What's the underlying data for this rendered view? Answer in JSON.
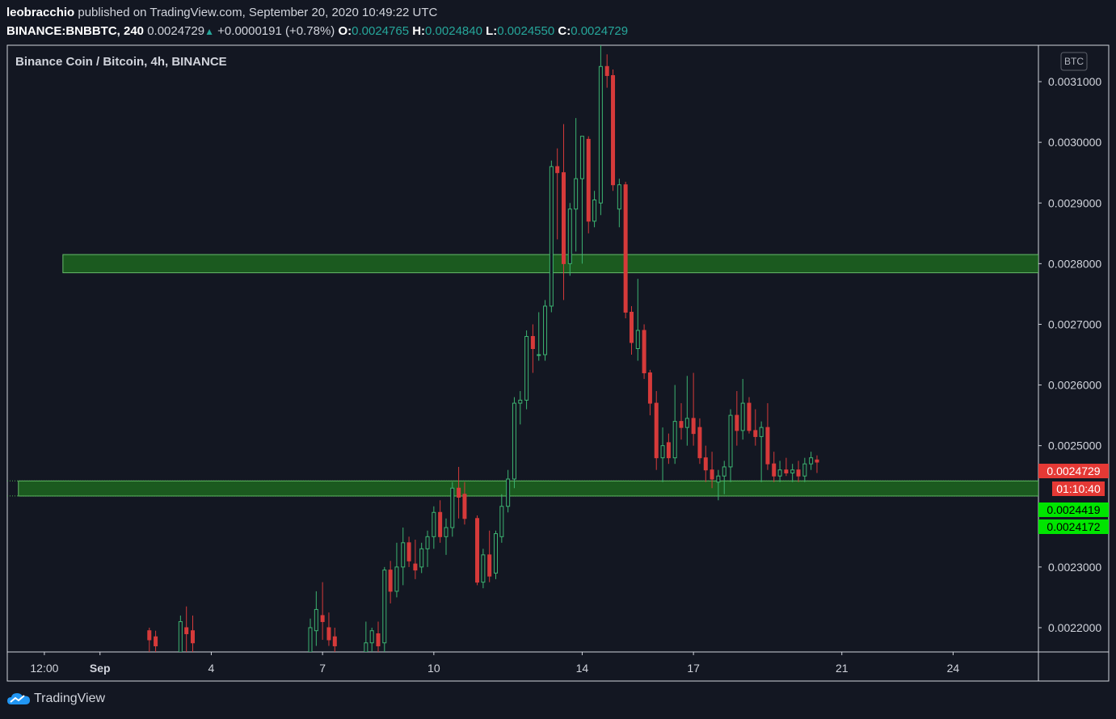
{
  "header": {
    "author": "leobracchio",
    "published_text": "published on TradingView.com, September 20, 2020 10:49:22 UTC",
    "symbol": "BINANCE:BNBBTC, 240",
    "last_price": "0.0024729",
    "change": "+0.0000191 (+0.78%)",
    "open_label": "O:",
    "open": "0.0024765",
    "high_label": "H:",
    "high": "0.0024840",
    "low_label": "L:",
    "low": "0.0024550",
    "close_label": "C:",
    "close": "0.0024729"
  },
  "footer": {
    "brand": "TradingView"
  },
  "colors": {
    "background": "#131722",
    "up": "#26a69a",
    "up_candle": "#3cb371",
    "down_candle": "#d63a3a",
    "zone_fill": "#1b5e20",
    "zone_border": "#66bb6a",
    "price_label_red": "#e53935",
    "price_label_green": "#00e500"
  },
  "chart_data": {
    "type": "candlestick",
    "title": "Binance Coin / Bitcoin, 4h, BINANCE",
    "currency_badge": "BTC",
    "y_ticks": [
      "0.0031000",
      "0.0030000",
      "0.0029000",
      "0.0028000",
      "0.0027000",
      "0.0026000",
      "0.0025000",
      "0.0023000",
      "0.0022000"
    ],
    "ylim": [
      0.00216,
      0.00316
    ],
    "x_ticks": [
      "12:00",
      "Sep",
      "4",
      "7",
      "10",
      "14",
      "17",
      "21",
      "24"
    ],
    "x_tick_days": [
      -0.5,
      1,
      4,
      7,
      10,
      14,
      17,
      21,
      24
    ],
    "xlim": [
      -1.5,
      26.3
    ],
    "price_labels": [
      {
        "text": "0.0024729",
        "value": 0.0024729,
        "style": "red"
      },
      {
        "text": "01:10:40",
        "value": 0.00244,
        "style": "red"
      },
      {
        "text": "0.0024419",
        "value": 0.0024419,
        "style": "green"
      },
      {
        "text": "0.0024172",
        "value": 0.0024172,
        "style": "green"
      }
    ],
    "zones": [
      {
        "name": "resistance zone",
        "from_day": 0.0,
        "to_day": 26.3,
        "low": 0.002785,
        "high": 0.002815
      },
      {
        "name": "support zone",
        "from_day": -1.2,
        "to_day": 26.3,
        "low": 0.002417,
        "high": 0.0024419
      }
    ],
    "candles": [
      {
        "day": 2.33,
        "o": 0.002195,
        "h": 0.0022,
        "l": 0.00215,
        "c": 0.00218
      },
      {
        "day": 2.5,
        "o": 0.002185,
        "h": 0.002195,
        "l": 0.00215,
        "c": 0.00217
      },
      {
        "day": 3.17,
        "o": 0.00216,
        "h": 0.00222,
        "l": 0.00215,
        "c": 0.00221
      },
      {
        "day": 3.33,
        "o": 0.0022,
        "h": 0.002235,
        "l": 0.00215,
        "c": 0.00219
      },
      {
        "day": 3.5,
        "o": 0.002195,
        "h": 0.00222,
        "l": 0.00215,
        "c": 0.002175
      },
      {
        "day": 6.67,
        "o": 0.00216,
        "h": 0.002215,
        "l": 0.00215,
        "c": 0.0022
      },
      {
        "day": 6.83,
        "o": 0.002195,
        "h": 0.00226,
        "l": 0.00217,
        "c": 0.00223
      },
      {
        "day": 7.0,
        "o": 0.00222,
        "h": 0.002275,
        "l": 0.00218,
        "c": 0.00221
      },
      {
        "day": 7.17,
        "o": 0.0022,
        "h": 0.002225,
        "l": 0.00217,
        "c": 0.00218
      },
      {
        "day": 7.33,
        "o": 0.002185,
        "h": 0.0022,
        "l": 0.00215,
        "c": 0.00217
      },
      {
        "day": 8.17,
        "o": 0.00216,
        "h": 0.00221,
        "l": 0.00215,
        "c": 0.002175
      },
      {
        "day": 8.33,
        "o": 0.002175,
        "h": 0.0022,
        "l": 0.00215,
        "c": 0.002195
      },
      {
        "day": 8.5,
        "o": 0.00219,
        "h": 0.00221,
        "l": 0.00215,
        "c": 0.00217
      },
      {
        "day": 8.67,
        "o": 0.002175,
        "h": 0.0023,
        "l": 0.00215,
        "c": 0.002295
      },
      {
        "day": 8.83,
        "o": 0.002295,
        "h": 0.00231,
        "l": 0.00224,
        "c": 0.00226
      },
      {
        "day": 9.0,
        "o": 0.00226,
        "h": 0.00234,
        "l": 0.00225,
        "c": 0.0023
      },
      {
        "day": 9.17,
        "o": 0.0023,
        "h": 0.002365,
        "l": 0.00227,
        "c": 0.00234
      },
      {
        "day": 9.33,
        "o": 0.00234,
        "h": 0.00235,
        "l": 0.0023,
        "c": 0.00231
      },
      {
        "day": 9.5,
        "o": 0.002305,
        "h": 0.002345,
        "l": 0.00228,
        "c": 0.002295
      },
      {
        "day": 9.67,
        "o": 0.0023,
        "h": 0.00234,
        "l": 0.00229,
        "c": 0.00233
      },
      {
        "day": 9.83,
        "o": 0.00233,
        "h": 0.00236,
        "l": 0.0023,
        "c": 0.00235
      },
      {
        "day": 10.0,
        "o": 0.00235,
        "h": 0.0024,
        "l": 0.00233,
        "c": 0.00239
      },
      {
        "day": 10.17,
        "o": 0.00239,
        "h": 0.00241,
        "l": 0.00234,
        "c": 0.00235
      },
      {
        "day": 10.33,
        "o": 0.00235,
        "h": 0.00238,
        "l": 0.00232,
        "c": 0.002365
      },
      {
        "day": 10.5,
        "o": 0.002365,
        "h": 0.00244,
        "l": 0.00235,
        "c": 0.00243
      },
      {
        "day": 10.67,
        "o": 0.00243,
        "h": 0.002465,
        "l": 0.00238,
        "c": 0.002415
      },
      {
        "day": 10.83,
        "o": 0.00242,
        "h": 0.00244,
        "l": 0.00237,
        "c": 0.00238
      },
      {
        "day": 11.17,
        "o": 0.00238,
        "h": 0.002385,
        "l": 0.00227,
        "c": 0.002275
      },
      {
        "day": 11.33,
        "o": 0.002275,
        "h": 0.00233,
        "l": 0.002265,
        "c": 0.00232
      },
      {
        "day": 11.5,
        "o": 0.00232,
        "h": 0.00236,
        "l": 0.002275,
        "c": 0.002285
      },
      {
        "day": 11.67,
        "o": 0.00229,
        "h": 0.00236,
        "l": 0.00228,
        "c": 0.002355
      },
      {
        "day": 11.83,
        "o": 0.00235,
        "h": 0.00242,
        "l": 0.00234,
        "c": 0.0024
      },
      {
        "day": 12.0,
        "o": 0.0024,
        "h": 0.00246,
        "l": 0.00239,
        "c": 0.002445
      },
      {
        "day": 12.17,
        "o": 0.002445,
        "h": 0.00258,
        "l": 0.00243,
        "c": 0.00257
      },
      {
        "day": 12.33,
        "o": 0.00257,
        "h": 0.00259,
        "l": 0.002535,
        "c": 0.002575
      },
      {
        "day": 12.5,
        "o": 0.002575,
        "h": 0.00269,
        "l": 0.00256,
        "c": 0.00268
      },
      {
        "day": 12.67,
        "o": 0.00268,
        "h": 0.0027,
        "l": 0.00262,
        "c": 0.00266
      },
      {
        "day": 12.83,
        "o": 0.00265,
        "h": 0.00272,
        "l": 0.00264,
        "c": 0.00265
      },
      {
        "day": 13.0,
        "o": 0.00265,
        "h": 0.00274,
        "l": 0.00264,
        "c": 0.00273
      },
      {
        "day": 13.17,
        "o": 0.00273,
        "h": 0.00297,
        "l": 0.00272,
        "c": 0.00296
      },
      {
        "day": 13.33,
        "o": 0.00296,
        "h": 0.00299,
        "l": 0.00284,
        "c": 0.00295
      },
      {
        "day": 13.5,
        "o": 0.00295,
        "h": 0.00303,
        "l": 0.00274,
        "c": 0.0028
      },
      {
        "day": 13.67,
        "o": 0.0028,
        "h": 0.0029,
        "l": 0.00278,
        "c": 0.00289
      },
      {
        "day": 13.83,
        "o": 0.00289,
        "h": 0.00304,
        "l": 0.00282,
        "c": 0.00294
      },
      {
        "day": 14.0,
        "o": 0.00294,
        "h": 0.00301,
        "l": 0.0028,
        "c": 0.00301
      },
      {
        "day": 14.17,
        "o": 0.003005,
        "h": 0.00301,
        "l": 0.00285,
        "c": 0.00287
      },
      {
        "day": 14.33,
        "o": 0.00287,
        "h": 0.00292,
        "l": 0.00286,
        "c": 0.002905
      },
      {
        "day": 14.5,
        "o": 0.0029,
        "h": 0.00316,
        "l": 0.00288,
        "c": 0.003125
      },
      {
        "day": 14.67,
        "o": 0.003125,
        "h": 0.003145,
        "l": 0.00309,
        "c": 0.00311
      },
      {
        "day": 14.83,
        "o": 0.00311,
        "h": 0.00312,
        "l": 0.00292,
        "c": 0.00293
      },
      {
        "day": 15.0,
        "o": 0.00289,
        "h": 0.00294,
        "l": 0.00286,
        "c": 0.00293
      },
      {
        "day": 15.17,
        "o": 0.00293,
        "h": 0.002935,
        "l": 0.00271,
        "c": 0.00272
      },
      {
        "day": 15.33,
        "o": 0.00272,
        "h": 0.00273,
        "l": 0.00265,
        "c": 0.00267
      },
      {
        "day": 15.5,
        "o": 0.00266,
        "h": 0.002775,
        "l": 0.00264,
        "c": 0.00269
      },
      {
        "day": 15.67,
        "o": 0.00269,
        "h": 0.0027,
        "l": 0.00261,
        "c": 0.00262
      },
      {
        "day": 15.83,
        "o": 0.00262,
        "h": 0.002625,
        "l": 0.00255,
        "c": 0.00257
      },
      {
        "day": 16.0,
        "o": 0.00257,
        "h": 0.00259,
        "l": 0.00246,
        "c": 0.00248
      },
      {
        "day": 16.17,
        "o": 0.00248,
        "h": 0.00253,
        "l": 0.00244,
        "c": 0.0025
      },
      {
        "day": 16.33,
        "o": 0.002505,
        "h": 0.00252,
        "l": 0.00247,
        "c": 0.00248
      },
      {
        "day": 16.5,
        "o": 0.00248,
        "h": 0.0026,
        "l": 0.00247,
        "c": 0.00254
      },
      {
        "day": 16.67,
        "o": 0.00254,
        "h": 0.00257,
        "l": 0.00251,
        "c": 0.00253
      },
      {
        "day": 16.83,
        "o": 0.00253,
        "h": 0.002615,
        "l": 0.0025,
        "c": 0.002545
      },
      {
        "day": 17.0,
        "o": 0.002545,
        "h": 0.00262,
        "l": 0.0025,
        "c": 0.00252
      },
      {
        "day": 17.17,
        "o": 0.00253,
        "h": 0.002545,
        "l": 0.00247,
        "c": 0.00248
      },
      {
        "day": 17.33,
        "o": 0.00248,
        "h": 0.0025,
        "l": 0.00244,
        "c": 0.00246
      },
      {
        "day": 17.5,
        "o": 0.00246,
        "h": 0.00249,
        "l": 0.00243,
        "c": 0.002445
      },
      {
        "day": 17.67,
        "o": 0.00244,
        "h": 0.00246,
        "l": 0.00241,
        "c": 0.00245
      },
      {
        "day": 17.83,
        "o": 0.00245,
        "h": 0.002475,
        "l": 0.00242,
        "c": 0.002465
      },
      {
        "day": 18.0,
        "o": 0.002465,
        "h": 0.00256,
        "l": 0.00244,
        "c": 0.00255
      },
      {
        "day": 18.17,
        "o": 0.00255,
        "h": 0.00259,
        "l": 0.0025,
        "c": 0.002525
      },
      {
        "day": 18.33,
        "o": 0.002525,
        "h": 0.00261,
        "l": 0.00251,
        "c": 0.00257
      },
      {
        "day": 18.5,
        "o": 0.00257,
        "h": 0.00258,
        "l": 0.00252,
        "c": 0.002525
      },
      {
        "day": 18.67,
        "o": 0.002525,
        "h": 0.00256,
        "l": 0.0025,
        "c": 0.002515
      },
      {
        "day": 18.83,
        "o": 0.002515,
        "h": 0.00254,
        "l": 0.00244,
        "c": 0.00253
      },
      {
        "day": 19.0,
        "o": 0.00253,
        "h": 0.00257,
        "l": 0.00246,
        "c": 0.00247
      },
      {
        "day": 19.17,
        "o": 0.00247,
        "h": 0.00249,
        "l": 0.00244,
        "c": 0.00245
      },
      {
        "day": 19.33,
        "o": 0.00245,
        "h": 0.002475,
        "l": 0.00244,
        "c": 0.00246
      },
      {
        "day": 19.5,
        "o": 0.00246,
        "h": 0.00248,
        "l": 0.00245,
        "c": 0.002455
      },
      {
        "day": 19.67,
        "o": 0.002455,
        "h": 0.00247,
        "l": 0.00244,
        "c": 0.00246
      },
      {
        "day": 19.83,
        "o": 0.00246,
        "h": 0.002475,
        "l": 0.00244,
        "c": 0.00245
      },
      {
        "day": 20.0,
        "o": 0.00245,
        "h": 0.00248,
        "l": 0.00244,
        "c": 0.00247
      },
      {
        "day": 20.17,
        "o": 0.00247,
        "h": 0.00249,
        "l": 0.00246,
        "c": 0.00248
      },
      {
        "day": 20.33,
        "o": 0.0024765,
        "h": 0.002484,
        "l": 0.002455,
        "c": 0.0024729
      }
    ]
  }
}
